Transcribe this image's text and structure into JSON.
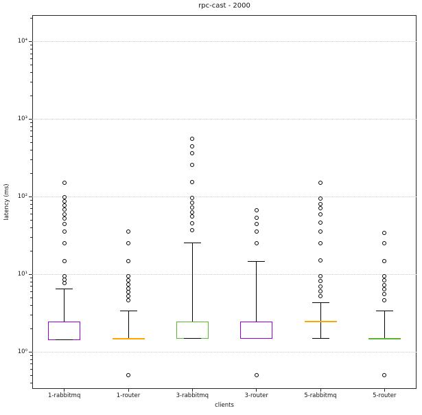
{
  "chart_data": {
    "type": "boxplot",
    "title": "rpc-cast - 2000",
    "xlabel": "clients",
    "ylabel": "latency (ms)",
    "yscale": "log",
    "ylim": [
      0.33,
      21700
    ],
    "grid": "dotted horizontal gridlines at major y ticks",
    "legend": "none",
    "y_major_ticks": [
      {
        "value": 1,
        "label": "10⁰"
      },
      {
        "value": 10,
        "label": "10¹"
      },
      {
        "value": 100,
        "label": "10²"
      },
      {
        "value": 1000,
        "label": "10³"
      },
      {
        "value": 10000,
        "label": "10⁴"
      }
    ],
    "categories": [
      "1-rabbitmq",
      "1-router",
      "3-rabbitmq",
      "3-router",
      "5-rabbitmq",
      "5-router"
    ],
    "box_colors": [
      "#9400d3",
      "#ffa500",
      "#5cb531",
      "#9400d3",
      "#ffa500",
      "#5cb531"
    ],
    "series": [
      {
        "name": "1-rabbitmq",
        "color": "#9400d3",
        "q1": 1.4,
        "median": 1.4,
        "q3": 2.45,
        "whisker_low": 1.4,
        "whisker_high": 6.5,
        "bottom_cap": true,
        "fliers_high": [
          7.6,
          8.4,
          9.4,
          14.7,
          25,
          35,
          44,
          52,
          59,
          68,
          76,
          86,
          97,
          150
        ],
        "fliers_low": []
      },
      {
        "name": "1-router",
        "color": "#ffa500",
        "q1": 1.45,
        "median": 1.45,
        "q3": 1.45,
        "whisker_low": 1.45,
        "whisker_high": 3.4,
        "bottom_cap": false,
        "fliers_high": [
          4.6,
          5.2,
          5.8,
          6.5,
          7.4,
          8.3,
          9.4,
          14.7,
          25,
          35
        ],
        "fliers_low": [
          0.5
        ]
      },
      {
        "name": "3-rabbitmq",
        "color": "#5cb531",
        "q1": 1.45,
        "median": 1.45,
        "q3": 2.45,
        "whisker_low": 1.45,
        "whisker_high": 25.4,
        "bottom_cap": true,
        "fliers_high": [
          37,
          45,
          55,
          63,
          72,
          83,
          95,
          153,
          255,
          362,
          444,
          556
        ],
        "fliers_low": []
      },
      {
        "name": "3-router",
        "color": "#9400d3",
        "q1": 1.45,
        "median": 1.45,
        "q3": 2.45,
        "whisker_low": 1.45,
        "whisker_high": 14.7,
        "bottom_cap": false,
        "fliers_high": [
          25,
          35,
          44,
          53,
          66
        ],
        "fliers_low": [
          0.5
        ]
      },
      {
        "name": "5-rabbitmq",
        "color": "#ffa500",
        "q1": 2.45,
        "median": 2.45,
        "q3": 2.45,
        "whisker_low": 1.45,
        "whisker_high": 4.3,
        "bottom_cap": true,
        "fliers_high": [
          5.2,
          6.0,
          6.9,
          8.1,
          9.4,
          15,
          25,
          35,
          46,
          59,
          70,
          80,
          93,
          150
        ],
        "fliers_low": []
      },
      {
        "name": "5-router",
        "color": "#5cb531",
        "q1": 1.45,
        "median": 1.45,
        "q3": 1.45,
        "whisker_low": 1.45,
        "whisker_high": 3.35,
        "bottom_cap": false,
        "fliers_high": [
          4.6,
          5.5,
          6.3,
          7.2,
          8.3,
          9.4,
          14.7,
          25,
          34
        ],
        "fliers_low": [
          0.5
        ]
      }
    ]
  }
}
